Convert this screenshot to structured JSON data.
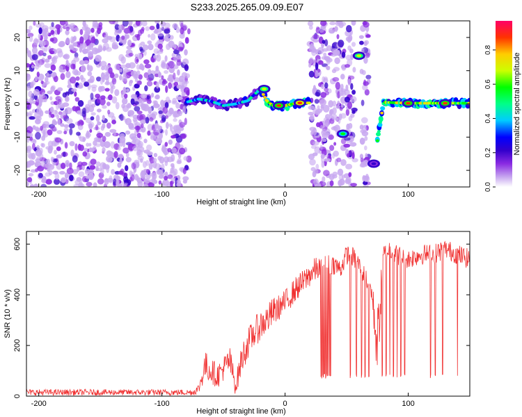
{
  "title": "S233.2025.265.09.09.E07",
  "chart_data": [
    {
      "type": "heatmap",
      "title": "S233.2025.265.09.09.E07",
      "xlabel": "Height of straight line (km)",
      "ylabel": "Frequency (Hz)",
      "xlim": [
        -210,
        150
      ],
      "ylim": [
        -25,
        25
      ],
      "x_ticks": [
        -200,
        -100,
        0,
        100
      ],
      "x_tick_labels": [
        "-200",
        "-100",
        "0",
        "100"
      ],
      "y_ticks": [
        -20,
        -10,
        0,
        10,
        20
      ],
      "y_tick_labels": [
        "-20",
        "-10",
        "0",
        "10",
        "20"
      ],
      "colorbar": {
        "label": "Normalized spectral amplitude",
        "range": [
          0,
          0.97
        ],
        "ticks": [
          0,
          0.2,
          0.4,
          0.6,
          0.8
        ],
        "tick_labels": [
          "0.0",
          "0.2",
          "0.4",
          "0.6",
          "0.8"
        ],
        "colors": [
          "#ffffff",
          "#c8a8f0",
          "#8a2be2",
          "#3300cc",
          "#0000ff",
          "#00ccff",
          "#00ff88",
          "#00ff00",
          "#ccff00",
          "#ffcc00",
          "#ff3300",
          "#ff0066"
        ]
      },
      "noise_regions": [
        [
          -210,
          -78
        ],
        [
          20,
          48
        ],
        [
          50,
          57
        ],
        [
          62,
          68
        ]
      ],
      "signal_track": [
        {
          "x": -80,
          "f": 0.5
        },
        {
          "x": -70,
          "f": 1.5
        },
        {
          "x": -60,
          "f": 0.8
        },
        {
          "x": -50,
          "f": -0.5
        },
        {
          "x": -40,
          "f": 0.0
        },
        {
          "x": -30,
          "f": 1.0
        },
        {
          "x": -20,
          "f": 4.5
        },
        {
          "x": -15,
          "f": 1.0
        },
        {
          "x": -10,
          "f": -0.5
        },
        {
          "x": 0,
          "f": -0.5
        },
        {
          "x": 10,
          "f": 0.3
        },
        {
          "x": 20,
          "f": 0.3
        },
        {
          "x": 47,
          "f": -9.0
        },
        {
          "x": 58,
          "f": 14.5
        },
        {
          "x": 52,
          "f": 10.0
        },
        {
          "x": 72,
          "f": -18.0
        },
        {
          "x": 80,
          "f": 0.5
        },
        {
          "x": 100,
          "f": 0.2
        },
        {
          "x": 120,
          "f": 0.2
        },
        {
          "x": 140,
          "f": 0.2
        },
        {
          "x": 150,
          "f": 0.2
        }
      ],
      "peak_spots": [
        {
          "x": -17,
          "f": 4.5,
          "amp": 0.75
        },
        {
          "x": -5,
          "f": -0.5,
          "amp": 0.9
        },
        {
          "x": 12,
          "f": 0.3,
          "amp": 0.95
        },
        {
          "x": 47,
          "f": -9.0,
          "amp": 0.6
        },
        {
          "x": 60,
          "f": 14.5,
          "amp": 0.7
        },
        {
          "x": 72,
          "f": -18.0,
          "amp": 0.3
        },
        {
          "x": 100,
          "f": 0.2,
          "amp": 0.9
        },
        {
          "x": 130,
          "f": 0.2,
          "amp": 0.9
        }
      ]
    },
    {
      "type": "line",
      "xlabel": "Height of straight line (km)",
      "ylabel": "SNR (10 * v/v)",
      "xlim": [
        -210,
        150
      ],
      "ylim": [
        0,
        650
      ],
      "x_ticks": [
        -200,
        -100,
        0,
        100
      ],
      "x_tick_labels": [
        "-200",
        "-100",
        "0",
        "100"
      ],
      "y_ticks": [
        0,
        200,
        400,
        600
      ],
      "y_tick_labels": [
        "0",
        "200",
        "400",
        "600"
      ],
      "color": "#f03030",
      "series": [
        {
          "name": "SNR",
          "x": [
            -210,
            -180,
            -150,
            -120,
            -90,
            -75,
            -70,
            -65,
            -60,
            -55,
            -50,
            -45,
            -40,
            -35,
            -30,
            -25,
            -20,
            -15,
            -10,
            -5,
            0,
            5,
            10,
            15,
            20,
            25,
            30,
            35,
            40,
            45,
            50,
            55,
            60,
            65,
            70,
            75,
            80,
            85,
            90,
            100,
            110,
            120,
            130,
            140,
            150
          ],
          "mean": [
            15,
            15,
            15,
            15,
            15,
            15,
            30,
            120,
            100,
            80,
            110,
            140,
            40,
            150,
            210,
            250,
            280,
            300,
            330,
            350,
            370,
            400,
            430,
            450,
            480,
            500,
            510,
            520,
            520,
            500,
            560,
            550,
            520,
            470,
            420,
            200,
            560,
            580,
            560,
            540,
            560,
            560,
            580,
            560,
            540
          ],
          "noise": [
            12,
            12,
            12,
            12,
            12,
            12,
            20,
            60,
            50,
            50,
            50,
            60,
            40,
            60,
            60,
            60,
            60,
            60,
            60,
            50,
            50,
            50,
            50,
            50,
            50,
            50,
            40,
            40,
            40,
            40,
            40,
            40,
            40,
            40,
            40,
            150,
            40,
            40,
            40,
            40,
            40,
            40,
            40,
            40,
            40
          ]
        }
      ],
      "dropouts_x": [
        29,
        30,
        31,
        32,
        33,
        34,
        35,
        36,
        37,
        53,
        58,
        62,
        65,
        68,
        79,
        82,
        85,
        88,
        91,
        94,
        97,
        118,
        122,
        128,
        140
      ]
    }
  ]
}
